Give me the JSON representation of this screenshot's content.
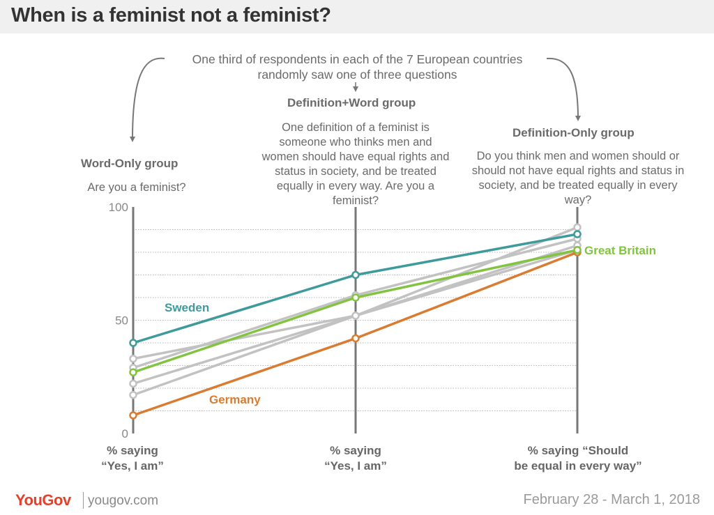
{
  "title": "When is a feminist not a feminist?",
  "intro": "One third of respondents in each of the 7 European countries randomly saw one of three questions",
  "groups": [
    {
      "name": "Word-Only group",
      "question": "Are you a feminist?"
    },
    {
      "name": "Definition+Word group",
      "question": "One definition of a feminist is someone who thinks men and women should have equal rights and status in society, and be treated equally in every way.  Are you a feminist?"
    },
    {
      "name": "Definition-Only group",
      "question": "Do you think men and women should or should not have equal rights and status in society, and be treated equally in every way?"
    }
  ],
  "footer": {
    "logo": "YouGov",
    "url": "yougov.com",
    "date": "February 28 - March 1, 2018"
  },
  "chart_data": {
    "type": "line",
    "categories": [
      "% saying\n“Yes, I am”",
      "% saying\n“Yes, I am”",
      "% saying “Should\nbe equal in every way”"
    ],
    "ylim": [
      0,
      100
    ],
    "yticks": [
      0,
      50,
      100
    ],
    "grid": true,
    "series": [
      {
        "name": "",
        "values": [
          33,
          52,
          91
        ],
        "color": "#c2c2c2"
      },
      {
        "name": "",
        "values": [
          29,
          61,
          86
        ],
        "color": "#c2c2c2"
      },
      {
        "name": "",
        "values": [
          22,
          52,
          83
        ],
        "color": "#c2c2c2"
      },
      {
        "name": "",
        "values": [
          17,
          52,
          81
        ],
        "color": "#c2c2c2"
      },
      {
        "name": "Germany",
        "values": [
          8,
          42,
          80
        ],
        "color": "#d97b30"
      },
      {
        "name": "Great Britain",
        "values": [
          27,
          60,
          81
        ],
        "color": "#82c341"
      },
      {
        "name": "Sweden",
        "values": [
          40,
          70,
          88
        ],
        "color": "#3e9a9b"
      }
    ]
  }
}
